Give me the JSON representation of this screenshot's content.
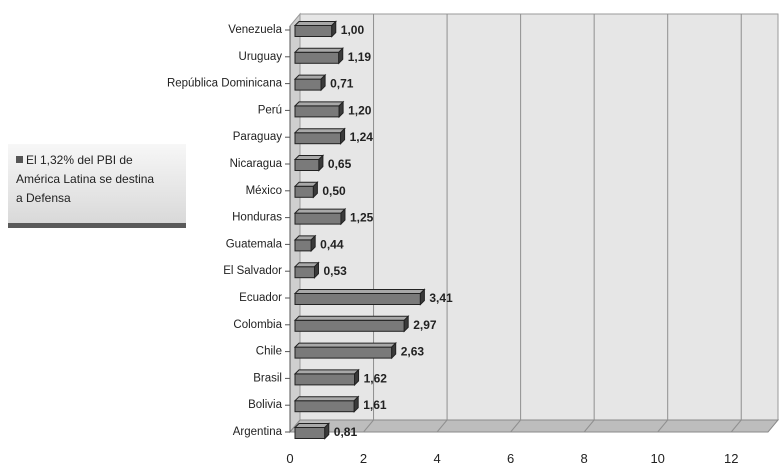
{
  "annotation": {
    "lines": [
      "El 1,32% del PBI de",
      "América Latina se destina",
      "a Defensa"
    ],
    "swatch_color": "#555555"
  },
  "chart_data": {
    "type": "bar",
    "orientation": "horizontal",
    "categories": [
      "Venezuela",
      "Uruguay",
      "República Dominicana",
      "Perú",
      "Paraguay",
      "Nicaragua",
      "México",
      "Honduras",
      "Guatemala",
      "El Salvador",
      "Ecuador",
      "Colombia",
      "Chile",
      "Brasil",
      "Bolivia",
      "Argentina"
    ],
    "values": [
      1.0,
      1.19,
      0.71,
      1.2,
      1.24,
      0.65,
      0.5,
      1.25,
      0.44,
      0.53,
      3.41,
      2.97,
      2.63,
      1.62,
      1.61,
      0.81
    ],
    "value_labels": [
      "1,00",
      "1,19",
      "0,71",
      "1,20",
      "1,24",
      "0,65",
      "0,50",
      "1,25",
      "0,44",
      "0,53",
      "3,41",
      "2,97",
      "2,63",
      "1,62",
      "1,61",
      "0,81"
    ],
    "xticks": [
      0,
      2,
      4,
      6,
      8,
      10,
      12
    ],
    "xlim": [
      0,
      13
    ],
    "grid": true,
    "style": "3d",
    "bar_color": "#7a7a7a",
    "wall_color": "#e6e6e6",
    "title": "",
    "xlabel": "",
    "ylabel": ""
  }
}
